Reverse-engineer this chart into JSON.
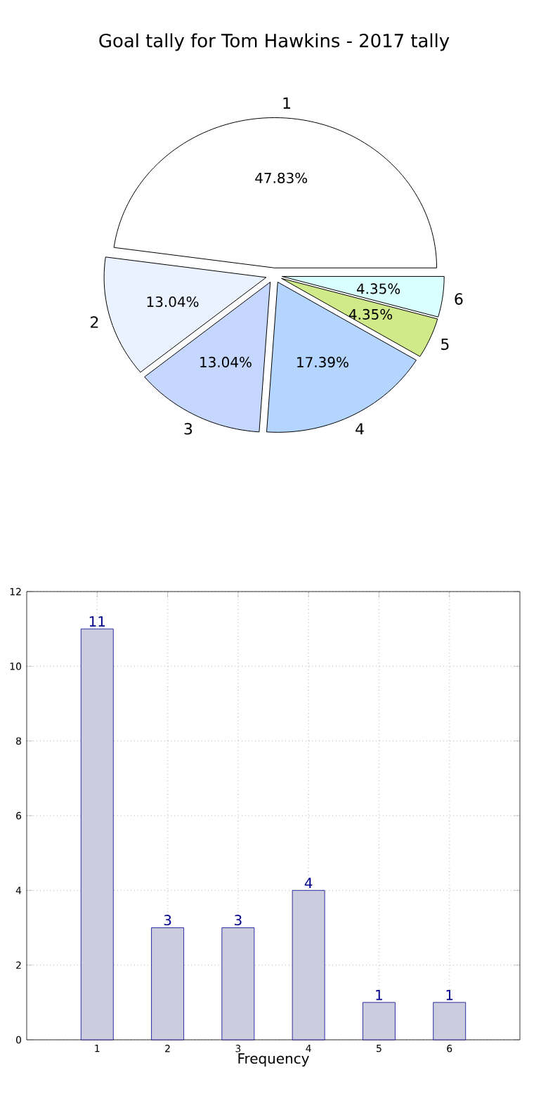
{
  "chart_data": [
    {
      "type": "pie",
      "title": "Goal tally for Tom Hawkins - 2017 tally",
      "categories": [
        "1",
        "2",
        "3",
        "4",
        "5",
        "6"
      ],
      "values": [
        47.83,
        13.04,
        13.04,
        17.39,
        4.35,
        4.35
      ],
      "colors": [
        "#ffffff",
        "#eaf1ff",
        "#c5d7ff",
        "#b3d5ff",
        "#d0ea8a",
        "#d9ffff"
      ],
      "value_labels": [
        "47.83%",
        "13.04%",
        "13.04%",
        "17.39%",
        "4.35%",
        "4.35%"
      ]
    },
    {
      "type": "bar",
      "categories": [
        "1",
        "2",
        "3",
        "4",
        "5",
        "6"
      ],
      "values": [
        11,
        3,
        3,
        4,
        1,
        1
      ],
      "color": "#ccccdf",
      "xlabel": "Frequency",
      "ylim": [
        0,
        12
      ],
      "yticks": [
        0,
        2,
        4,
        6,
        8,
        10,
        12
      ],
      "grid": true,
      "data_labels": true
    }
  ]
}
